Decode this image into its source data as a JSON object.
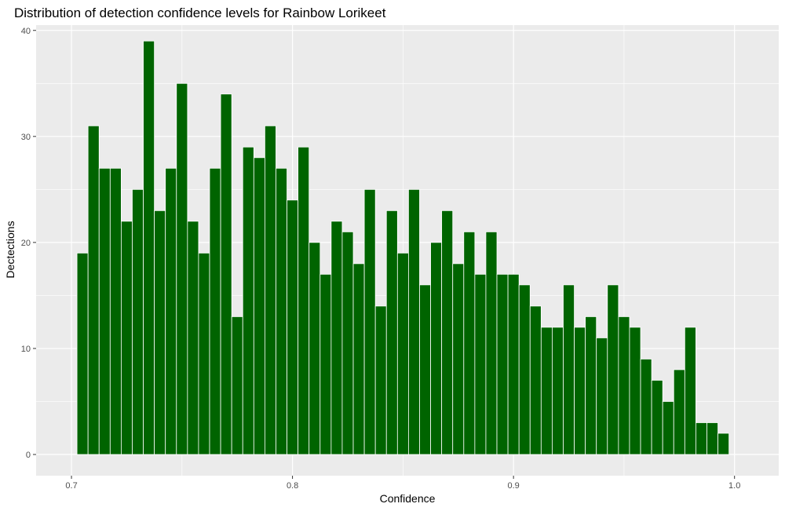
{
  "chart_data": {
    "type": "bar",
    "title": "Distribution of detection confidence levels for Rainbow Lorikeet",
    "xlabel": "Confidence",
    "ylabel": "Dectections",
    "x_ticks": [
      "0.7",
      "0.8",
      "0.9",
      "1.0"
    ],
    "y_ticks": [
      "0",
      "10",
      "20",
      "30",
      "40"
    ],
    "xlim": [
      0.684,
      1.02
    ],
    "ylim": [
      -2,
      40.5
    ],
    "bin_width": 0.005,
    "bin_start": 0.7025,
    "values": [
      19,
      31,
      27,
      27,
      22,
      25,
      39,
      23,
      27,
      35,
      22,
      19,
      27,
      34,
      13,
      29,
      28,
      31,
      27,
      24,
      29,
      20,
      17,
      22,
      21,
      18,
      25,
      14,
      23,
      19,
      25,
      16,
      20,
      23,
      18,
      21,
      17,
      21,
      17,
      17,
      16,
      14,
      12,
      12,
      16,
      12,
      13,
      11,
      16,
      13,
      12,
      9,
      7,
      5,
      8,
      12,
      3,
      3,
      2
    ],
    "bar_color": "#006400",
    "bar_outline": "#ffffff",
    "panel_background": "#ebebeb",
    "grid_color": "#ffffff",
    "grid": true,
    "legend": "none"
  }
}
